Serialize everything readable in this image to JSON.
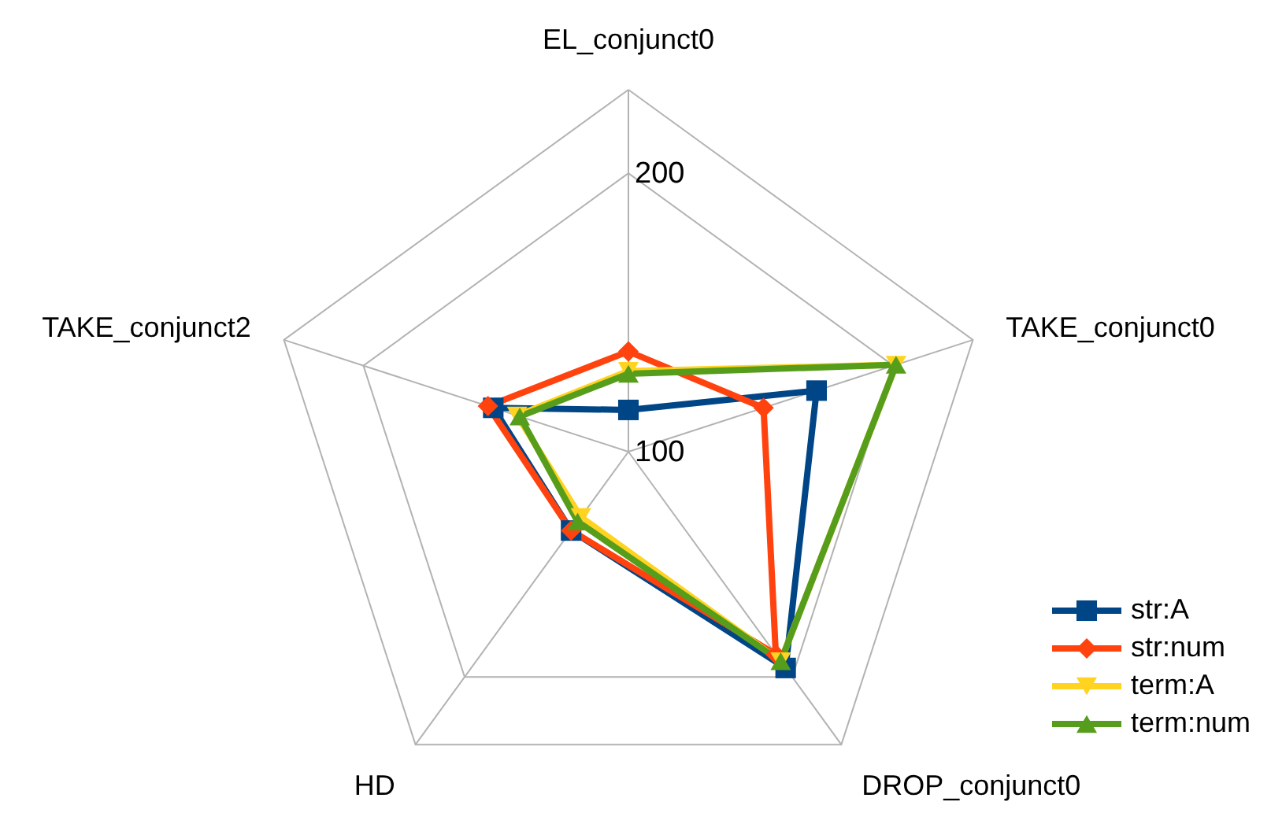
{
  "chart_data": {
    "type": "radar",
    "categories": [
      "EL_conjunct0",
      "TAKE_conjunct0",
      "DROP_conjunct0",
      "HD",
      "TAKE_conjunct2"
    ],
    "ylim": [
      100,
      230
    ],
    "yticks": [
      100,
      200
    ],
    "grid": true,
    "legend": "bottom right",
    "series": [
      {
        "name": "str:A",
        "color": "#004586",
        "marker": "square",
        "values": [
          115,
          171,
          196,
          135,
          151
        ]
      },
      {
        "name": "str:num",
        "color": "#ff420e",
        "marker": "diamond",
        "values": [
          136,
          151,
          190,
          135,
          153
        ]
      },
      {
        "name": "term:A",
        "color": "#ffd320",
        "marker": "triangle-down",
        "values": [
          129,
          201,
          193,
          129,
          142
        ]
      },
      {
        "name": "term:num",
        "color": "#579d1c",
        "marker": "triangle-up",
        "values": [
          128,
          201,
          193,
          131,
          141
        ]
      }
    ]
  }
}
